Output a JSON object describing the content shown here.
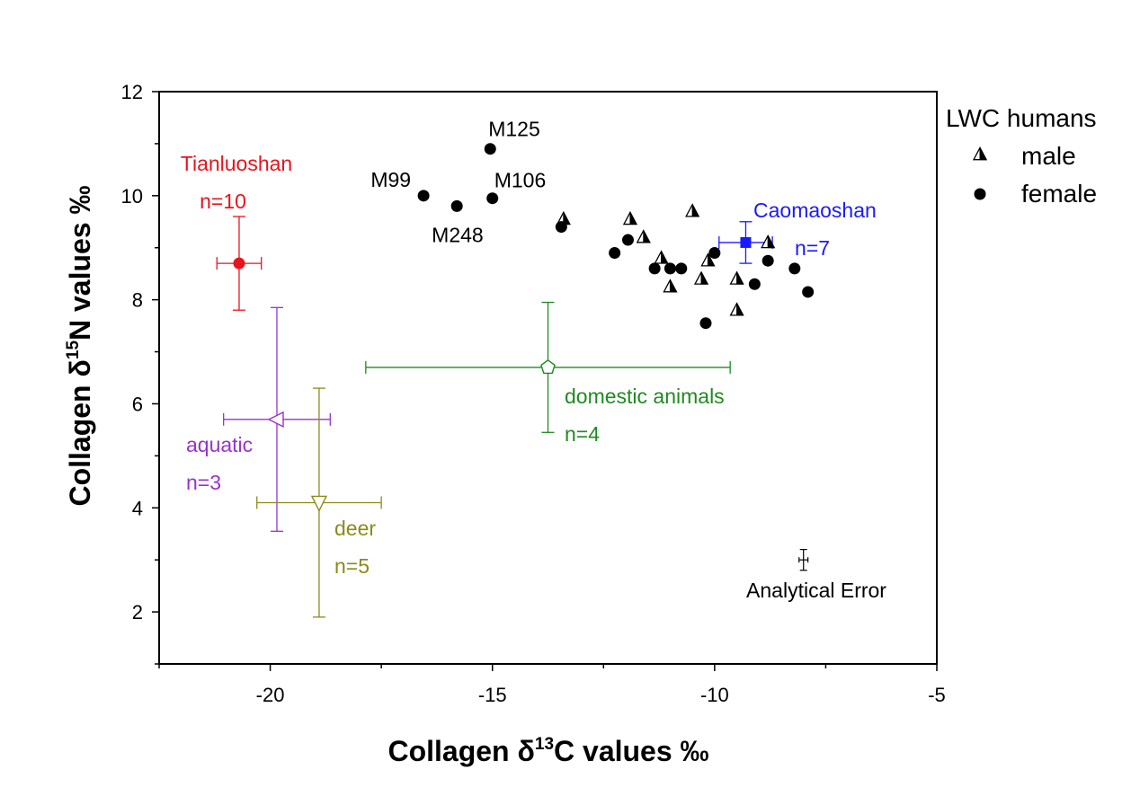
{
  "chart_data": {
    "type": "scatter",
    "xlabel_parts": [
      "Collagen δ",
      "13",
      "C values ‰"
    ],
    "ylabel_parts": [
      "Collagen δ",
      "15",
      "N values ‰"
    ],
    "xlim": [
      -22.5,
      -5
    ],
    "ylim": [
      1,
      12
    ],
    "xticks": [
      -20,
      -15,
      -10,
      -5
    ],
    "yticks": [
      2,
      4,
      6,
      8,
      10,
      12
    ],
    "x_tick_labels": [
      "-20",
      "-15",
      "-10",
      "-5"
    ],
    "y_tick_labels": [
      "2",
      "4",
      "6",
      "8",
      "10",
      "12"
    ],
    "legend": {
      "title": "LWC humans",
      "position": "top-right",
      "entries": [
        {
          "label": "male",
          "marker": "half-triangle"
        },
        {
          "label": "female",
          "marker": "circle"
        }
      ]
    },
    "series": [
      {
        "name": "male",
        "marker": "half-triangle",
        "color": "#000000",
        "points": [
          {
            "x": -13.4,
            "y": 9.55
          },
          {
            "x": -11.9,
            "y": 9.55
          },
          {
            "x": -11.6,
            "y": 9.2
          },
          {
            "x": -11.2,
            "y": 8.8
          },
          {
            "x": -11.0,
            "y": 8.25
          },
          {
            "x": -10.5,
            "y": 9.7
          },
          {
            "x": -10.3,
            "y": 8.4
          },
          {
            "x": -10.15,
            "y": 8.75
          },
          {
            "x": -9.5,
            "y": 8.4
          },
          {
            "x": -9.5,
            "y": 7.8
          },
          {
            "x": -8.8,
            "y": 9.1
          }
        ]
      },
      {
        "name": "female",
        "marker": "circle",
        "color": "#000000",
        "points": [
          {
            "x": -16.55,
            "y": 10.0
          },
          {
            "x": -15.8,
            "y": 9.8
          },
          {
            "x": -15.05,
            "y": 10.9
          },
          {
            "x": -15.0,
            "y": 9.95
          },
          {
            "x": -13.45,
            "y": 9.4
          },
          {
            "x": -12.25,
            "y": 8.9
          },
          {
            "x": -11.95,
            "y": 9.15
          },
          {
            "x": -11.35,
            "y": 8.6
          },
          {
            "x": -11.0,
            "y": 8.6
          },
          {
            "x": -10.75,
            "y": 8.6
          },
          {
            "x": -10.2,
            "y": 7.55
          },
          {
            "x": -10.0,
            "y": 8.9
          },
          {
            "x": -9.1,
            "y": 8.3
          },
          {
            "x": -8.8,
            "y": 8.75
          },
          {
            "x": -8.2,
            "y": 8.6
          },
          {
            "x": -7.9,
            "y": 8.15
          }
        ]
      }
    ],
    "point_labels": [
      {
        "text": "M125",
        "x": -15.05,
        "y": 10.9
      },
      {
        "text": "M99",
        "x": -16.55,
        "y": 10.0
      },
      {
        "text": "M106",
        "x": -15.0,
        "y": 9.95
      },
      {
        "text": "M248",
        "x": -15.8,
        "y": 9.8
      }
    ],
    "group_means": [
      {
        "name": "Tianluoshan",
        "n_label": "n=10",
        "x": -20.7,
        "y": 8.7,
        "xerr": 0.5,
        "yerr": 0.9,
        "marker": "filled-circle",
        "color": "#e8141c"
      },
      {
        "name": "aquatic",
        "n_label": "n=3",
        "x": -19.85,
        "y": 5.7,
        "xerr": 1.2,
        "yerr": 2.15,
        "marker": "left-triangle-open",
        "color": "#9933cc"
      },
      {
        "name": "deer",
        "n_label": "n=5",
        "x": -18.9,
        "y": 4.1,
        "xerr": 1.4,
        "yerr": 2.2,
        "marker": "down-triangle-open",
        "color": "#8b8b1a"
      },
      {
        "name": "domestic animals",
        "n_label": "n=4",
        "x": -13.75,
        "y": 6.7,
        "xerr": 4.1,
        "yerr": 1.25,
        "marker": "pentagon-open",
        "color": "#1f8a1f"
      },
      {
        "name": "Caomaoshan",
        "n_label": "n=7",
        "x": -9.3,
        "y": 9.1,
        "xerr": 0.6,
        "yerr": 0.4,
        "marker": "filled-square",
        "color": "#1a1aff"
      }
    ],
    "analytical_error": {
      "label": "Analytical Error",
      "x": -8.0,
      "y": 3.0,
      "xerr": 0.1,
      "yerr": 0.2,
      "color": "#000000"
    }
  }
}
